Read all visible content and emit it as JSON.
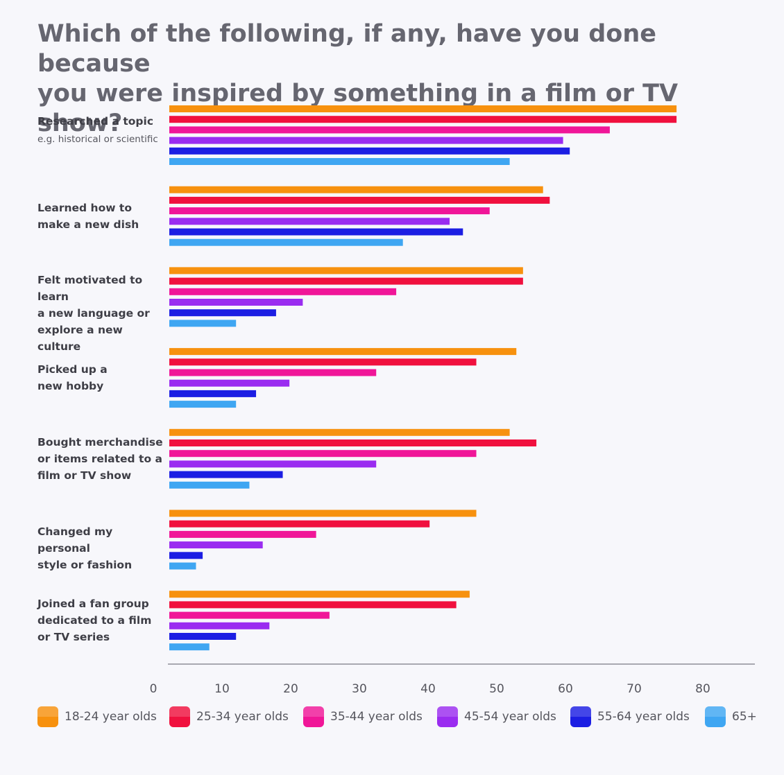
{
  "chart_data": {
    "type": "bar",
    "orientation": "horizontal",
    "title_lines": [
      "Which of the following, if any, have you done because",
      "you were inspired by something in a film or TV show?"
    ],
    "categories": [
      {
        "lines": [
          "Researched a topic"
        ],
        "sub": "e.g. historical or scientific"
      },
      {
        "lines": [
          "Learned how to",
          "make a new dish"
        ],
        "sub": ""
      },
      {
        "lines": [
          "Felt motivated to learn",
          "a new language or",
          "explore a new culture"
        ],
        "sub": ""
      },
      {
        "lines": [
          "Picked up a",
          "new hobby"
        ],
        "sub": ""
      },
      {
        "lines": [
          "Bought merchandise",
          "or items related to a",
          "film or TV show"
        ],
        "sub": ""
      },
      {
        "lines": [
          "Changed my personal",
          "style or fashion"
        ],
        "sub": ""
      },
      {
        "lines": [
          "Joined a fan group",
          "dedicated to a film",
          "or TV series"
        ],
        "sub": ""
      }
    ],
    "series": [
      {
        "name": "18-24 year olds",
        "color": "#f7910e",
        "values": [
          76,
          56,
          53,
          52,
          51,
          46,
          45
        ]
      },
      {
        "name": "25-34 year olds",
        "color": "#f0103e",
        "values": [
          76,
          57,
          53,
          46,
          55,
          39,
          43
        ]
      },
      {
        "name": "35-44 year olds",
        "color": "#f01698",
        "values": [
          66,
          48,
          34,
          31,
          46,
          22,
          24
        ]
      },
      {
        "name": "45-54 year olds",
        "color": "#9a2cf0",
        "values": [
          59,
          42,
          20,
          18,
          31,
          14,
          15
        ]
      },
      {
        "name": "55-64 year olds",
        "color": "#1c1ee3",
        "values": [
          60,
          44,
          16,
          13,
          17,
          5,
          10
        ]
      },
      {
        "name": "65+",
        "color": "#3fa6f2",
        "values": [
          51,
          35,
          10,
          10,
          12,
          4,
          6
        ]
      }
    ],
    "x_ticks": [
      "0",
      "10",
      "20",
      "30",
      "40",
      "50",
      "60",
      "70",
      "80"
    ],
    "xlim": [
      0,
      85
    ],
    "legend_position": "bottom"
  }
}
